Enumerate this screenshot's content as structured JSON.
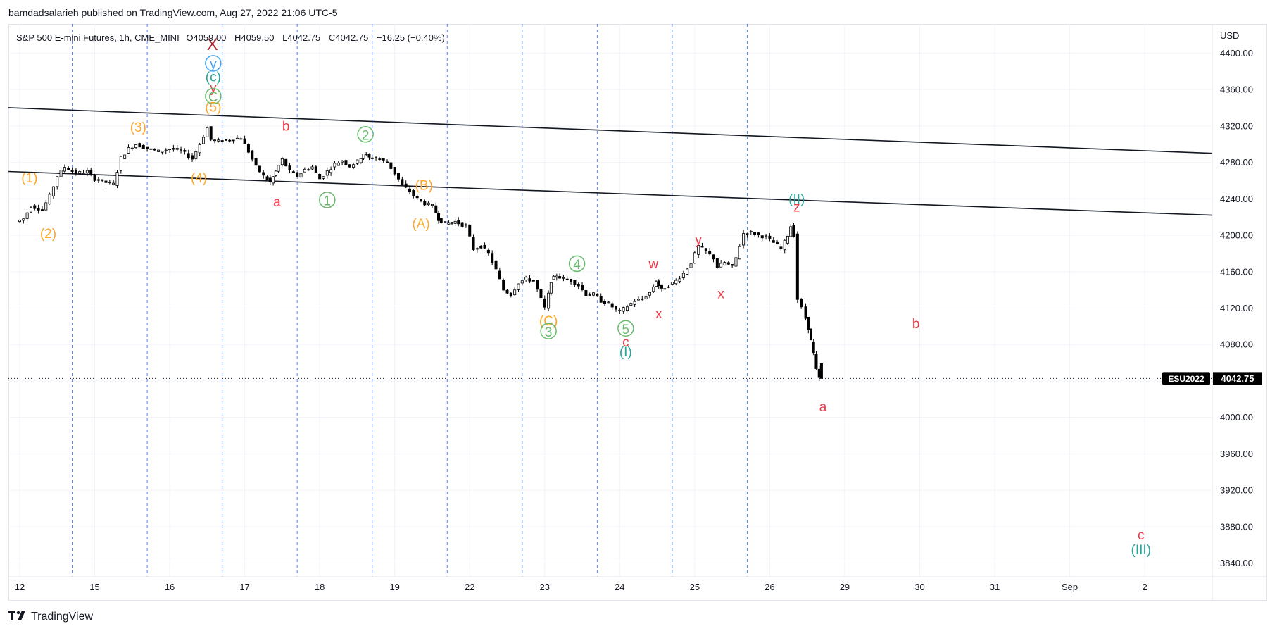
{
  "header": {
    "published_line": "bamdadsalarieh published on TradingView.com, Aug 27, 2022 21:06 UTC-5"
  },
  "footer": {
    "logo_text": "TradingView"
  },
  "chart_data": {
    "type": "candlestick",
    "symbol_line": "S&P 500 E-mini Futures, 1h, CME_MINI",
    "ohlc_line": {
      "open": "O4059.00",
      "high": "H4059.50",
      "low": "L4042.75",
      "close": "C4042.75",
      "change": "−16.25 (−0.40%)"
    },
    "currency": "USD",
    "ticker": "ESU2022",
    "last_price": "4042.75",
    "last_price_value": 4042.75,
    "ylim": [
      3825,
      4432
    ],
    "y_ticks": [
      4400,
      4360,
      4320,
      4280,
      4240,
      4200,
      4160,
      4120,
      4080,
      4040,
      4000,
      3960,
      3920,
      3880,
      3840
    ],
    "y_tick_labels": [
      "4400.00",
      "4360.00",
      "4320.00",
      "4280.00",
      "4240.00",
      "4200.00",
      "4160.00",
      "4120.00",
      "4080.00",
      "",
      "4000.00",
      "3960.00",
      "3920.00",
      "3880.00",
      "3840.00"
    ],
    "x_range_sessions": [
      -0.15,
      15.9
    ],
    "x_ticks": [
      {
        "label": "12",
        "session": 0
      },
      {
        "label": "15",
        "session": 1
      },
      {
        "label": "16",
        "session": 2
      },
      {
        "label": "17",
        "session": 3
      },
      {
        "label": "18",
        "session": 4
      },
      {
        "label": "19",
        "session": 5
      },
      {
        "label": "22",
        "session": 6
      },
      {
        "label": "23",
        "session": 7
      },
      {
        "label": "24",
        "session": 8
      },
      {
        "label": "25",
        "session": 9
      },
      {
        "label": "26",
        "session": 10
      },
      {
        "label": "29",
        "session": 11
      },
      {
        "label": "30",
        "session": 12
      },
      {
        "label": "31",
        "session": 13
      },
      {
        "label": "Sep",
        "session": 14
      },
      {
        "label": "2",
        "session": 15
      }
    ],
    "session_separators": [
      0.7,
      1.7,
      2.7,
      3.7,
      4.7,
      5.7,
      6.7,
      7.7,
      8.7,
      9.7
    ],
    "grid": true,
    "price_path": [
      [
        0.0,
        4215
      ],
      [
        0.1,
        4218
      ],
      [
        0.2,
        4232
      ],
      [
        0.35,
        4228
      ],
      [
        0.45,
        4243
      ],
      [
        0.55,
        4265
      ],
      [
        0.65,
        4275
      ],
      [
        0.8,
        4268
      ],
      [
        0.95,
        4270
      ],
      [
        1.05,
        4262
      ],
      [
        1.2,
        4258
      ],
      [
        1.3,
        4256
      ],
      [
        1.4,
        4285
      ],
      [
        1.5,
        4295
      ],
      [
        1.6,
        4300
      ],
      [
        1.75,
        4295
      ],
      [
        1.9,
        4292
      ],
      [
        2.05,
        4295
      ],
      [
        2.2,
        4293
      ],
      [
        2.35,
        4284
      ],
      [
        2.45,
        4300
      ],
      [
        2.55,
        4318
      ],
      [
        2.6,
        4305
      ],
      [
        2.7,
        4303
      ],
      [
        2.85,
        4305
      ],
      [
        3.0,
        4307
      ],
      [
        3.1,
        4292
      ],
      [
        3.2,
        4275
      ],
      [
        3.3,
        4265
      ],
      [
        3.38,
        4258
      ],
      [
        3.45,
        4270
      ],
      [
        3.55,
        4283
      ],
      [
        3.65,
        4270
      ],
      [
        3.75,
        4265
      ],
      [
        3.85,
        4272
      ],
      [
        3.95,
        4275
      ],
      [
        4.05,
        4262
      ],
      [
        4.15,
        4270
      ],
      [
        4.25,
        4278
      ],
      [
        4.35,
        4282
      ],
      [
        4.45,
        4276
      ],
      [
        4.55,
        4281
      ],
      [
        4.62,
        4290
      ],
      [
        4.7,
        4285
      ],
      [
        4.8,
        4285
      ],
      [
        4.95,
        4280
      ],
      [
        5.05,
        4268
      ],
      [
        5.15,
        4255
      ],
      [
        5.25,
        4248
      ],
      [
        5.35,
        4240
      ],
      [
        5.45,
        4235
      ],
      [
        5.55,
        4232
      ],
      [
        5.62,
        4218
      ],
      [
        5.72,
        4213
      ],
      [
        5.85,
        4215
      ],
      [
        6.0,
        4210
      ],
      [
        6.1,
        4185
      ],
      [
        6.2,
        4188
      ],
      [
        6.3,
        4180
      ],
      [
        6.4,
        4162
      ],
      [
        6.5,
        4140
      ],
      [
        6.6,
        4135
      ],
      [
        6.7,
        4148
      ],
      [
        6.8,
        4152
      ],
      [
        6.9,
        4150
      ],
      [
        7.0,
        4130
      ],
      [
        7.05,
        4120
      ],
      [
        7.12,
        4150
      ],
      [
        7.2,
        4156
      ],
      [
        7.3,
        4152
      ],
      [
        7.4,
        4150
      ],
      [
        7.5,
        4145
      ],
      [
        7.6,
        4135
      ],
      [
        7.7,
        4135
      ],
      [
        7.8,
        4128
      ],
      [
        7.9,
        4125
      ],
      [
        8.0,
        4118
      ],
      [
        8.05,
        4116
      ],
      [
        8.15,
        4122
      ],
      [
        8.25,
        4128
      ],
      [
        8.35,
        4130
      ],
      [
        8.45,
        4137
      ],
      [
        8.52,
        4150
      ],
      [
        8.6,
        4140
      ],
      [
        8.7,
        4145
      ],
      [
        8.8,
        4150
      ],
      [
        8.9,
        4158
      ],
      [
        9.0,
        4170
      ],
      [
        9.1,
        4188
      ],
      [
        9.2,
        4182
      ],
      [
        9.3,
        4175
      ],
      [
        9.35,
        4165
      ],
      [
        9.45,
        4170
      ],
      [
        9.55,
        4165
      ],
      [
        9.6,
        4175
      ],
      [
        9.7,
        4202
      ],
      [
        9.8,
        4203
      ],
      [
        9.9,
        4200
      ],
      [
        10.0,
        4198
      ],
      [
        10.1,
        4192
      ],
      [
        10.2,
        4185
      ],
      [
        10.28,
        4200
      ],
      [
        10.32,
        4210
      ],
      [
        10.37,
        4200
      ],
      [
        10.42,
        4130
      ],
      [
        10.48,
        4120
      ],
      [
        10.55,
        4098
      ],
      [
        10.62,
        4070
      ],
      [
        10.66,
        4052
      ],
      [
        10.69,
        4042.75
      ]
    ],
    "trendlines": [
      {
        "name": "upper",
        "from": [
          -0.15,
          4340
        ],
        "to": [
          15.9,
          4290
        ]
      },
      {
        "name": "lower",
        "from": [
          -0.15,
          4270
        ],
        "to": [
          15.9,
          4222
        ]
      }
    ],
    "annotations": [
      {
        "text": "(1)",
        "x": 0.13,
        "y": 4263,
        "color": "#ffa726"
      },
      {
        "text": "(2)",
        "x": 0.38,
        "y": 4202,
        "color": "#ffa726"
      },
      {
        "text": "(3)",
        "x": 1.58,
        "y": 4319,
        "color": "#ffa726"
      },
      {
        "text": "(4)",
        "x": 2.39,
        "y": 4263,
        "color": "#ffa726"
      },
      {
        "text": "(5)",
        "x": 2.58,
        "y": 4341,
        "color": "#ffa726"
      },
      {
        "text": "X",
        "x": 2.57,
        "y": 4410,
        "color": "#b22833",
        "size": 24
      },
      {
        "text": "y",
        "x": 2.58,
        "y": 4388,
        "color": "#42a5f5",
        "circle": true
      },
      {
        "text": "(c)",
        "x": 2.58,
        "y": 4374,
        "color": "#26a69a"
      },
      {
        "text": "y",
        "x": 2.58,
        "y": 4362,
        "color": "#f23645"
      },
      {
        "text": "C",
        "x": 2.58,
        "y": 4352,
        "color": "#66bb6a",
        "circle": true
      },
      {
        "text": "b",
        "x": 3.55,
        "y": 4320,
        "color": "#f23645"
      },
      {
        "text": "a",
        "x": 3.43,
        "y": 4237,
        "color": "#f23645"
      },
      {
        "text": "1",
        "x": 4.1,
        "y": 4238,
        "color": "#66bb6a",
        "circle": true
      },
      {
        "text": "2",
        "x": 4.61,
        "y": 4310,
        "color": "#66bb6a",
        "circle": true
      },
      {
        "text": "(B)",
        "x": 5.39,
        "y": 4255,
        "color": "#ffa726"
      },
      {
        "text": "(A)",
        "x": 5.35,
        "y": 4213,
        "color": "#ffa726"
      },
      {
        "text": "4",
        "x": 7.43,
        "y": 4168,
        "color": "#66bb6a",
        "circle": true
      },
      {
        "text": "(C)",
        "x": 7.05,
        "y": 4106,
        "color": "#ffa726"
      },
      {
        "text": "3",
        "x": 7.05,
        "y": 4094,
        "color": "#66bb6a",
        "circle": true
      },
      {
        "text": "5",
        "x": 8.08,
        "y": 4097,
        "color": "#66bb6a",
        "circle": true
      },
      {
        "text": "c",
        "x": 8.08,
        "y": 4083,
        "color": "#f23645"
      },
      {
        "text": "(I)",
        "x": 8.08,
        "y": 4072,
        "color": "#26a69a"
      },
      {
        "text": "w",
        "x": 8.45,
        "y": 4169,
        "color": "#f23645"
      },
      {
        "text": "x",
        "x": 8.52,
        "y": 4114,
        "color": "#f23645"
      },
      {
        "text": "y",
        "x": 9.05,
        "y": 4195,
        "color": "#f23645"
      },
      {
        "text": "x",
        "x": 9.35,
        "y": 4136,
        "color": "#f23645"
      },
      {
        "text": "(II)",
        "x": 10.36,
        "y": 4240,
        "color": "#26a69a"
      },
      {
        "text": "z",
        "x": 10.36,
        "y": 4231,
        "color": "#f23645"
      },
      {
        "text": "b",
        "x": 11.95,
        "y": 4103,
        "color": "#f23645"
      },
      {
        "text": "a",
        "x": 10.71,
        "y": 4012,
        "color": "#f23645"
      },
      {
        "text": "c",
        "x": 14.95,
        "y": 3871,
        "color": "#f23645"
      },
      {
        "text": "(III)",
        "x": 14.95,
        "y": 3855,
        "color": "#26a69a"
      }
    ]
  }
}
